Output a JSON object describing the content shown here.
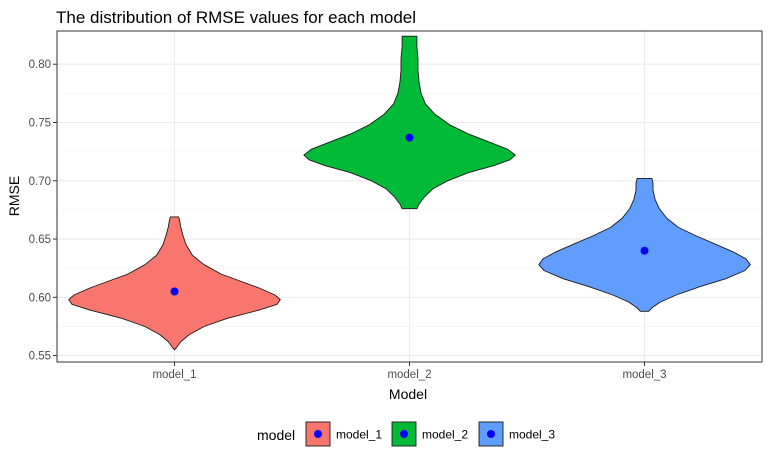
{
  "chart_data": {
    "type": "violin",
    "title": "The distribution of RMSE values for each model",
    "xlabel": "Model",
    "ylabel": "RMSE",
    "categories": [
      "model_1",
      "model_2",
      "model_3"
    ],
    "ylim": [
      0.5445,
      0.8285
    ],
    "yticks": [
      0.55,
      0.6,
      0.65,
      0.7,
      0.75,
      0.8
    ],
    "ytick_labels": [
      "0.55",
      "0.60",
      "0.65",
      "0.70",
      "0.75",
      "0.80"
    ],
    "grid": true,
    "legend": {
      "title": "model",
      "position": "bottom",
      "entries": [
        "model_1",
        "model_2",
        "model_3"
      ]
    },
    "colors": {
      "model_1": "#F8766D",
      "model_2": "#00BA38",
      "model_3": "#619CFF",
      "mean_point": "#0000FF",
      "grid_major": "#EBEBEB",
      "grid_minor": "#F5F5F5",
      "panel_border": "#333333"
    },
    "series": [
      {
        "name": "model_1",
        "mean": 0.605,
        "density": [
          [
            0.555,
            0.0
          ],
          [
            0.557,
            0.02
          ],
          [
            0.562,
            0.06
          ],
          [
            0.568,
            0.14
          ],
          [
            0.575,
            0.28
          ],
          [
            0.582,
            0.5
          ],
          [
            0.589,
            0.8
          ],
          [
            0.594,
            0.97
          ],
          [
            0.598,
            1.0
          ],
          [
            0.602,
            0.95
          ],
          [
            0.608,
            0.8
          ],
          [
            0.614,
            0.62
          ],
          [
            0.62,
            0.44
          ],
          [
            0.628,
            0.28
          ],
          [
            0.636,
            0.17
          ],
          [
            0.645,
            0.11
          ],
          [
            0.653,
            0.08
          ],
          [
            0.66,
            0.06
          ],
          [
            0.665,
            0.05
          ],
          [
            0.669,
            0.04
          ]
        ]
      },
      {
        "name": "model_2",
        "mean": 0.737,
        "density": [
          [
            0.676,
            0.07
          ],
          [
            0.68,
            0.09
          ],
          [
            0.686,
            0.14
          ],
          [
            0.693,
            0.22
          ],
          [
            0.7,
            0.36
          ],
          [
            0.707,
            0.56
          ],
          [
            0.713,
            0.8
          ],
          [
            0.718,
            0.95
          ],
          [
            0.722,
            1.0
          ],
          [
            0.727,
            0.93
          ],
          [
            0.733,
            0.76
          ],
          [
            0.74,
            0.56
          ],
          [
            0.748,
            0.38
          ],
          [
            0.757,
            0.24
          ],
          [
            0.766,
            0.15
          ],
          [
            0.775,
            0.11
          ],
          [
            0.785,
            0.09
          ],
          [
            0.795,
            0.08
          ],
          [
            0.805,
            0.08
          ],
          [
            0.815,
            0.07
          ],
          [
            0.824,
            0.07
          ]
        ]
      },
      {
        "name": "model_3",
        "mean": 0.64,
        "density": [
          [
            0.588,
            0.04
          ],
          [
            0.591,
            0.07
          ],
          [
            0.596,
            0.15
          ],
          [
            0.602,
            0.3
          ],
          [
            0.609,
            0.52
          ],
          [
            0.616,
            0.77
          ],
          [
            0.623,
            0.95
          ],
          [
            0.628,
            1.0
          ],
          [
            0.633,
            0.96
          ],
          [
            0.639,
            0.84
          ],
          [
            0.646,
            0.66
          ],
          [
            0.653,
            0.48
          ],
          [
            0.66,
            0.32
          ],
          [
            0.668,
            0.21
          ],
          [
            0.676,
            0.14
          ],
          [
            0.684,
            0.1
          ],
          [
            0.692,
            0.08
          ],
          [
            0.698,
            0.08
          ],
          [
            0.702,
            0.07
          ]
        ]
      }
    ]
  }
}
